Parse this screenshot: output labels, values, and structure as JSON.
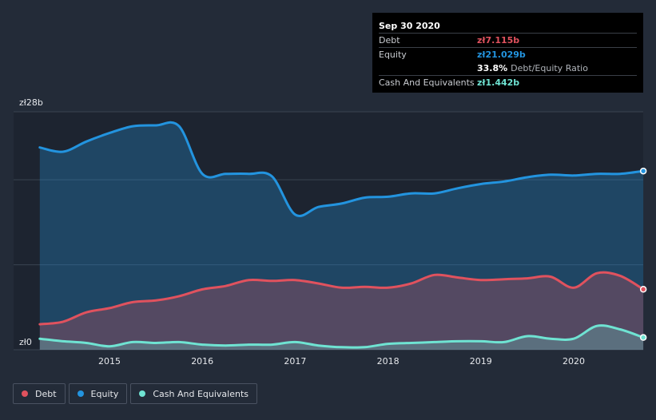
{
  "chart_data": {
    "type": "area",
    "y_axis": {
      "top_label": "zł28b",
      "bottom_label": "zł0",
      "ylim": [
        0,
        28
      ]
    },
    "x_ticks": [
      "2015",
      "2016",
      "2017",
      "2018",
      "2019",
      "2020"
    ],
    "series": [
      {
        "name": "Debt",
        "color": "#e0525e",
        "x": [
          2014.25,
          2014.5,
          2014.75,
          2015.0,
          2015.25,
          2015.5,
          2015.75,
          2016.0,
          2016.25,
          2016.5,
          2016.75,
          2017.0,
          2017.25,
          2017.5,
          2017.75,
          2018.0,
          2018.25,
          2018.5,
          2018.75,
          2019.0,
          2019.25,
          2019.5,
          2019.75,
          2020.0,
          2020.25,
          2020.5,
          2020.75
        ],
        "values": [
          3.0,
          3.3,
          4.4,
          4.9,
          5.6,
          5.8,
          6.3,
          7.1,
          7.5,
          8.2,
          8.1,
          8.2,
          7.8,
          7.3,
          7.4,
          7.3,
          7.8,
          8.8,
          8.5,
          8.2,
          8.3,
          8.4,
          8.6,
          7.3,
          9.0,
          8.7,
          7.115
        ]
      },
      {
        "name": "Equity",
        "color": "#2394df",
        "x": [
          2014.25,
          2014.5,
          2014.75,
          2015.0,
          2015.25,
          2015.5,
          2015.75,
          2016.0,
          2016.25,
          2016.5,
          2016.75,
          2017.0,
          2017.25,
          2017.5,
          2017.75,
          2018.0,
          2018.25,
          2018.5,
          2018.75,
          2019.0,
          2019.25,
          2019.5,
          2019.75,
          2020.0,
          2020.25,
          2020.5,
          2020.75
        ],
        "values": [
          23.8,
          23.3,
          24.5,
          25.5,
          26.3,
          26.4,
          26.3,
          20.7,
          20.7,
          20.7,
          20.4,
          15.9,
          16.8,
          17.2,
          17.9,
          18.0,
          18.4,
          18.4,
          19.0,
          19.5,
          19.8,
          20.3,
          20.6,
          20.5,
          20.7,
          20.7,
          21.029
        ]
      },
      {
        "name": "Cash And Equivalents",
        "color": "#6fe3d2",
        "x": [
          2014.25,
          2014.5,
          2014.75,
          2015.0,
          2015.25,
          2015.5,
          2015.75,
          2016.0,
          2016.25,
          2016.5,
          2016.75,
          2017.0,
          2017.25,
          2017.5,
          2017.75,
          2018.0,
          2018.25,
          2018.5,
          2018.75,
          2019.0,
          2019.25,
          2019.5,
          2019.75,
          2020.0,
          2020.25,
          2020.5,
          2020.75
        ],
        "values": [
          1.3,
          1.0,
          0.8,
          0.4,
          0.9,
          0.8,
          0.9,
          0.6,
          0.5,
          0.6,
          0.6,
          0.9,
          0.5,
          0.3,
          0.3,
          0.7,
          0.8,
          0.9,
          1.0,
          1.0,
          0.9,
          1.6,
          1.3,
          1.3,
          2.8,
          2.4,
          1.442
        ]
      }
    ],
    "grid": true,
    "legend_position": "bottom-left"
  },
  "tooltip": {
    "date": "Sep 30 2020",
    "debt_label": "Debt",
    "debt_value": "zł7.115b",
    "equity_label": "Equity",
    "equity_value": "zł21.029b",
    "ratio_value": "33.8%",
    "ratio_label": "Debt/Equity Ratio",
    "cash_label": "Cash And Equivalents",
    "cash_value": "zł1.442b",
    "colors": {
      "debt": "#e0525e",
      "equity": "#2394df",
      "cash": "#6fe3d2"
    }
  },
  "legend": [
    {
      "label": "Debt",
      "color": "#e0525e"
    },
    {
      "label": "Equity",
      "color": "#2394df"
    },
    {
      "label": "Cash And Equivalents",
      "color": "#6fe3d2"
    }
  ]
}
